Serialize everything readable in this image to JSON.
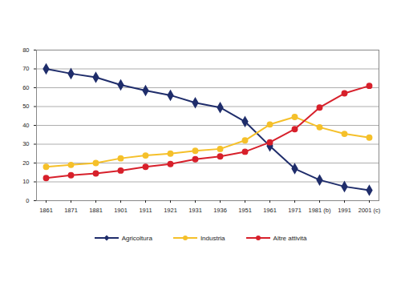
{
  "chart_data": {
    "type": "line",
    "categories": [
      "1861",
      "1871",
      "1881",
      "1901",
      "1911",
      "1921",
      "1931",
      "1936",
      "1951",
      "1961",
      "1971",
      "1981 (b)",
      "1991",
      "2001 (c)"
    ],
    "series": [
      {
        "name": "Agricoltura",
        "color": "#1f2d6b",
        "marker": "diamond",
        "values": [
          70,
          67.5,
          65.5,
          61.5,
          58.5,
          56,
          52,
          49.5,
          42,
          29,
          17,
          11,
          7.5,
          5.5
        ]
      },
      {
        "name": "Industria",
        "color": "#f5c02a",
        "marker": "circle",
        "values": [
          18,
          19,
          20,
          22.5,
          24,
          25,
          26.5,
          27.5,
          32,
          40.5,
          44.5,
          39,
          35.5,
          33.5
        ]
      },
      {
        "name": "Altre attività",
        "color": "#d7202b",
        "marker": "circle",
        "values": [
          12,
          13.5,
          14.5,
          16,
          18,
          19.5,
          22,
          23.5,
          26,
          31,
          38,
          49.5,
          57,
          61
        ]
      }
    ],
    "ylim": [
      0,
      80
    ],
    "yticks": [
      0,
      10,
      20,
      30,
      40,
      50,
      60,
      70,
      80
    ],
    "grid": true,
    "legend": "bottom"
  }
}
